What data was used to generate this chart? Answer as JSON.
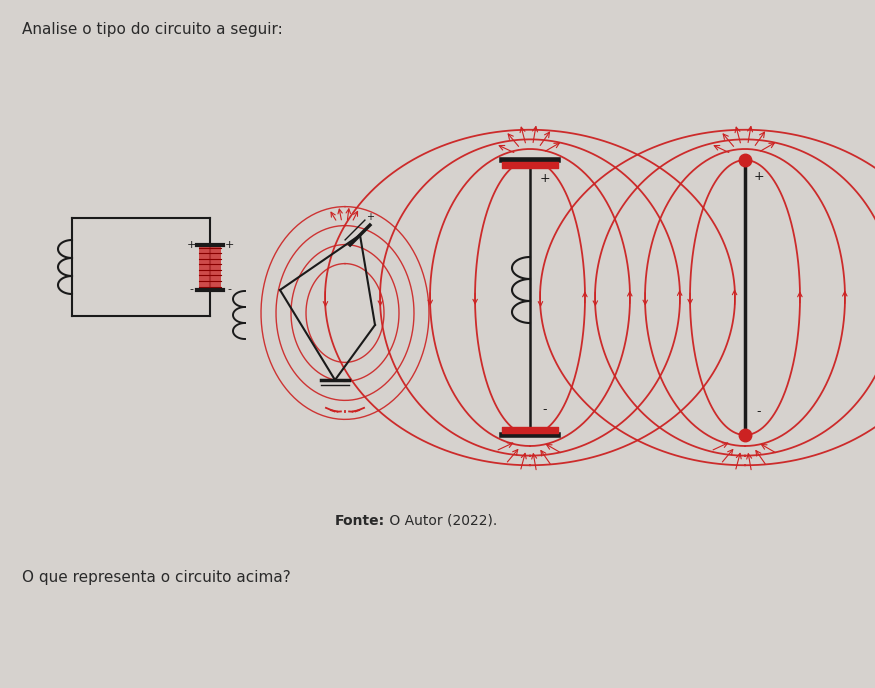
{
  "title_text": "Analise o tipo do circuito a seguir:",
  "fonte_bold": "Fonte:",
  "fonte_rest": " O Autor (2022).",
  "question_text": "O que representa o circuito acima?",
  "bg_color": "#d6d2ce",
  "red_color": "#cc2222",
  "dark_color": "#1a1a1a",
  "fig_width": 8.75,
  "fig_height": 6.88,
  "dpi": 100
}
